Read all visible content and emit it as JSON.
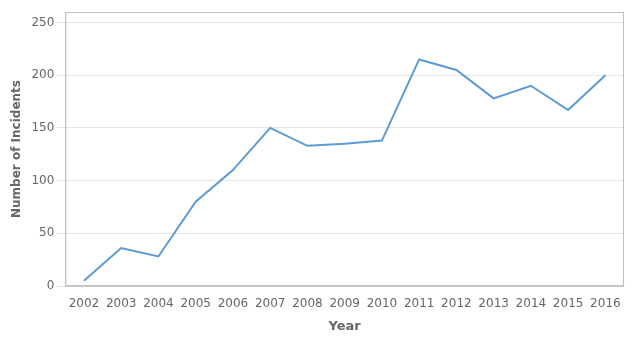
{
  "chart_data": {
    "type": "line",
    "xlabel": "Year",
    "ylabel": "Number of Incidents",
    "x": [
      2002,
      2003,
      2004,
      2005,
      2006,
      2007,
      2008,
      2009,
      2010,
      2011,
      2012,
      2013,
      2014,
      2015,
      2016
    ],
    "values": [
      5,
      36,
      28,
      80,
      110,
      150,
      133,
      135,
      138,
      215,
      205,
      178,
      190,
      167,
      200
    ],
    "color": "#5B9BD5",
    "xlim": [
      2001.5,
      2016.5
    ],
    "xticks": [
      2002,
      2003,
      2004,
      2005,
      2006,
      2007,
      2008,
      2009,
      2010,
      2011,
      2012,
      2013,
      2014,
      2015,
      2016
    ],
    "ylim": [
      0,
      260
    ],
    "yticks": [
      0,
      50,
      100,
      150,
      200,
      250
    ],
    "grid": "y"
  }
}
